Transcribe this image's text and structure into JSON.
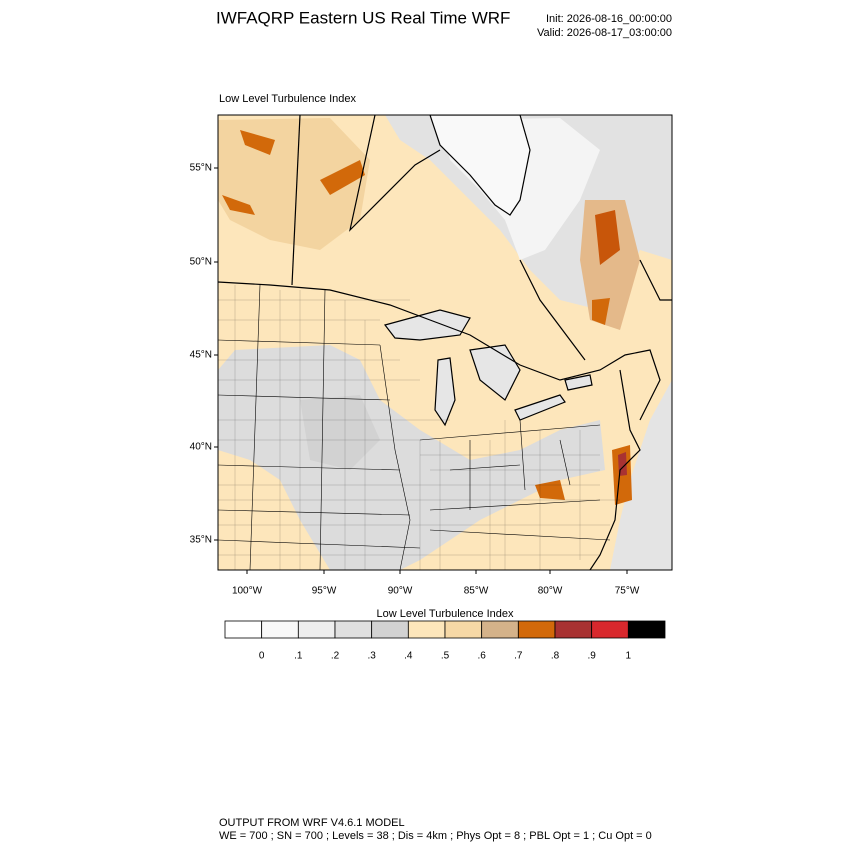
{
  "header": {
    "title": "IWFAQRP Eastern US Real Time WRF",
    "init": "Init: 2026-08-16_00:00:00",
    "valid": "Valid: 2026-08-17_03:00:00"
  },
  "map": {
    "subtitle": "Low Level Turbulence Index",
    "lat_labels": [
      "55°N",
      "50°N",
      "45°N",
      "40°N",
      "35°N"
    ],
    "lon_labels": [
      "100°W",
      "95°W",
      "90°W",
      "85°W",
      "80°W",
      "75°W"
    ]
  },
  "colorbar": {
    "title": "Low Level Turbulence Index",
    "colors": [
      "#ffffff",
      "#f8f8f8",
      "#eeeeee",
      "#e0e0e0",
      "#d2d2d2",
      "#fde6bb",
      "#f6d8a6",
      "#d4b28a",
      "#d2690a",
      "#a83232",
      "#d8282d",
      "#000000"
    ],
    "ticks": [
      0,
      {
        "value": 0.1,
        "label": ".1"
      },
      {
        "value": 0.2,
        "label": ".2"
      },
      {
        "value": 0.3,
        "label": ".3"
      },
      {
        "value": 0.4,
        "label": ".4"
      },
      {
        "value": 0.5,
        "label": ".5"
      },
      {
        "value": 0.6,
        "label": ".6"
      },
      {
        "value": 0.7,
        "label": ".7"
      },
      {
        "value": 0.8,
        "label": ".8"
      },
      {
        "value": 0.9,
        "label": ".9"
      },
      1
    ]
  },
  "footer": {
    "line1": "OUTPUT FROM WRF V4.6.1 MODEL",
    "line2": "WE = 700 ; SN = 700 ; Levels = 38 ; Dis = 4km ; Phys Opt = 8 ; PBL Opt = 1 ; Cu Opt = 0"
  }
}
